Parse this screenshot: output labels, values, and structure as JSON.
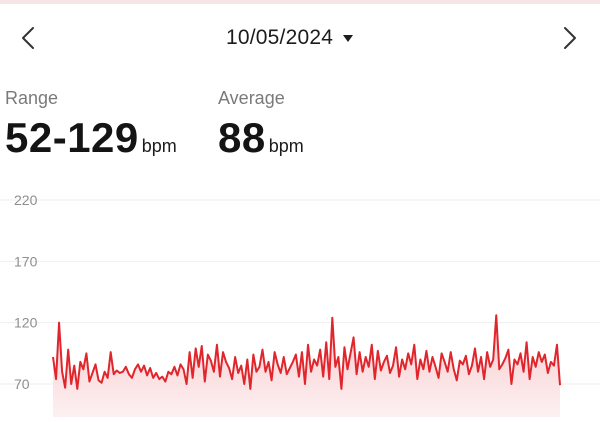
{
  "header": {
    "prev_icon": "chevron-left-icon",
    "next_icon": "chevron-right-icon",
    "date": "10/05/2024",
    "dropdown_icon": "caret-down-icon"
  },
  "stats": {
    "range": {
      "label": "Range",
      "value": "52-129",
      "unit": "bpm"
    },
    "average": {
      "label": "Average",
      "value": "88",
      "unit": "bpm"
    }
  },
  "colors": {
    "line": "#e0262c",
    "fill_top": "#f7c9cc",
    "fill_bottom": "#fdf0f1",
    "grid": "#eeeeee",
    "tick": "#8e8e8e"
  },
  "chart_data": {
    "type": "area",
    "y_ticks": [
      220,
      170,
      120,
      70
    ],
    "ylim": [
      45,
      220
    ],
    "grid": true,
    "series": [
      {
        "values": [
          92,
          74,
          120,
          80,
          67,
          98,
          70,
          85,
          66,
          88,
          82,
          95,
          72,
          79,
          86,
          73,
          71,
          80,
          75,
          96,
          78,
          81,
          79,
          80,
          84,
          78,
          75,
          82,
          86,
          80,
          85,
          77,
          83,
          75,
          79,
          74,
          76,
          72,
          80,
          78,
          84,
          77,
          86,
          82,
          70,
          96,
          75,
          99,
          84,
          101,
          72,
          94,
          89,
          80,
          102,
          76,
          96,
          88,
          83,
          74,
          92,
          79,
          85,
          70,
          90,
          66,
          94,
          80,
          84,
          98,
          80,
          88,
          73,
          96,
          86,
          79,
          92,
          78,
          83,
          88,
          94,
          76,
          96,
          70,
          102,
          80,
          90,
          85,
          98,
          76,
          104,
          74,
          124,
          84,
          92,
          66,
          100,
          82,
          95,
          108,
          78,
          96,
          80,
          92,
          84,
          102,
          74,
          97,
          81,
          88,
          93,
          79,
          85,
          100,
          76,
          90,
          82,
          95,
          86,
          102,
          74,
          90,
          82,
          97,
          80,
          92,
          84,
          75,
          95,
          88,
          80,
          96,
          82,
          73,
          89,
          86,
          93,
          78,
          85,
          99,
          80,
          92,
          74,
          96,
          84,
          90,
          126,
          82,
          86,
          91,
          98,
          70,
          90,
          86,
          95,
          80,
          104,
          74,
          92,
          84,
          96,
          88,
          94,
          79,
          88,
          85,
          102,
          69
        ]
      }
    ]
  }
}
